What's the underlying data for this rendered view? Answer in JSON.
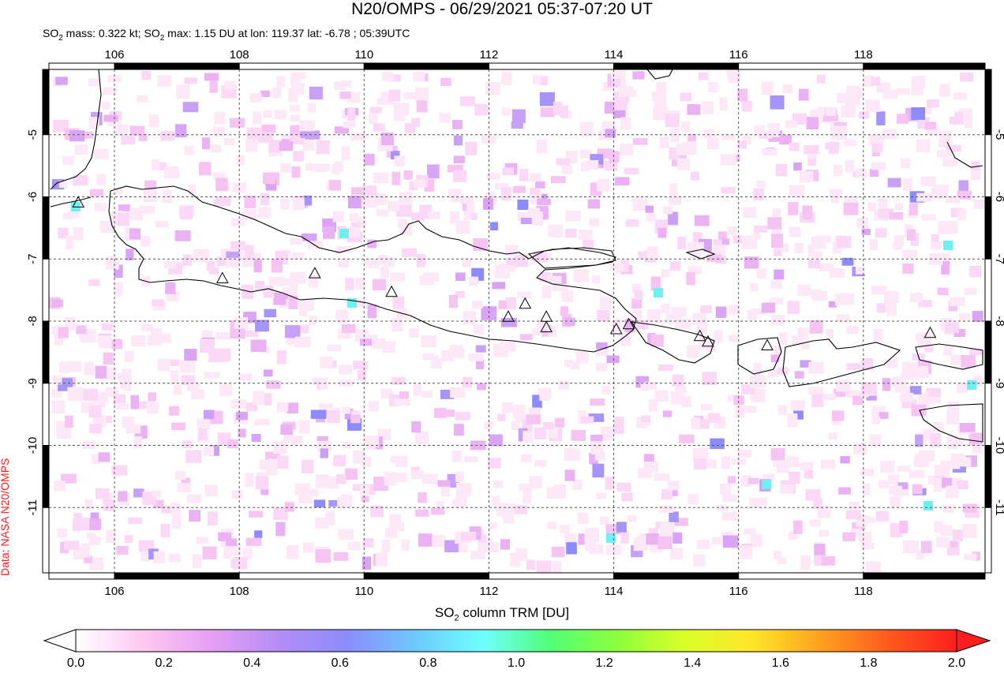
{
  "header": {
    "title": "N20/OMPS - 06/29/2021 05:37-07:20 UT",
    "subtitle_pre": "SO",
    "subtitle_sub": "2",
    "subtitle_mid": " mass: 0.322 kt; SO",
    "subtitle_sub2": "2",
    "subtitle_post": " max: 1.15 DU at lon: 119.37 lat: -6.78 ; 05:39UTC"
  },
  "credit": "Data: NASA N20/OMPS",
  "map": {
    "lon_ticks": [
      "106",
      "108",
      "110",
      "112",
      "114",
      "116",
      "118"
    ],
    "lat_ticks": [
      "-5",
      "-6",
      "-7",
      "-8",
      "-9",
      "-10",
      "-11"
    ],
    "lon_range": [
      104.95,
      119.95
    ],
    "lat_range": [
      -12.05,
      -3.95
    ],
    "volcanoes": [
      {
        "lon": 105.42,
        "lat": -6.1
      },
      {
        "lon": 107.73,
        "lat": -7.32
      },
      {
        "lon": 109.21,
        "lat": -7.24
      },
      {
        "lon": 110.44,
        "lat": -7.54
      },
      {
        "lon": 112.31,
        "lat": -7.94
      },
      {
        "lon": 112.58,
        "lat": -7.73
      },
      {
        "lon": 112.92,
        "lat": -7.94
      },
      {
        "lon": 112.92,
        "lat": -8.11
      },
      {
        "lon": 114.04,
        "lat": -8.14
      },
      {
        "lon": 114.24,
        "lat": -8.06
      },
      {
        "lon": 115.38,
        "lat": -8.25
      },
      {
        "lon": 115.51,
        "lat": -8.34
      },
      {
        "lon": 116.46,
        "lat": -8.4
      },
      {
        "lon": 119.07,
        "lat": -8.2
      }
    ]
  },
  "colorbar": {
    "title_pre": "SO",
    "title_sub": "2",
    "title_post": " column TRM [DU]",
    "labels": [
      "0.0",
      "0.2",
      "0.4",
      "0.6",
      "0.8",
      "1.0",
      "1.2",
      "1.4",
      "1.6",
      "1.8",
      "2.0"
    ],
    "min": 0.0,
    "max": 2.0,
    "colors": [
      "#ffffff",
      "#ffc8f0",
      "#e6a0f5",
      "#b48cf5",
      "#8c8cff",
      "#6ec8ff",
      "#6effff",
      "#50ff78",
      "#8cff3c",
      "#dcff28",
      "#ffe628",
      "#ffa01e",
      "#ff5a1e",
      "#ff1e1e"
    ]
  }
}
